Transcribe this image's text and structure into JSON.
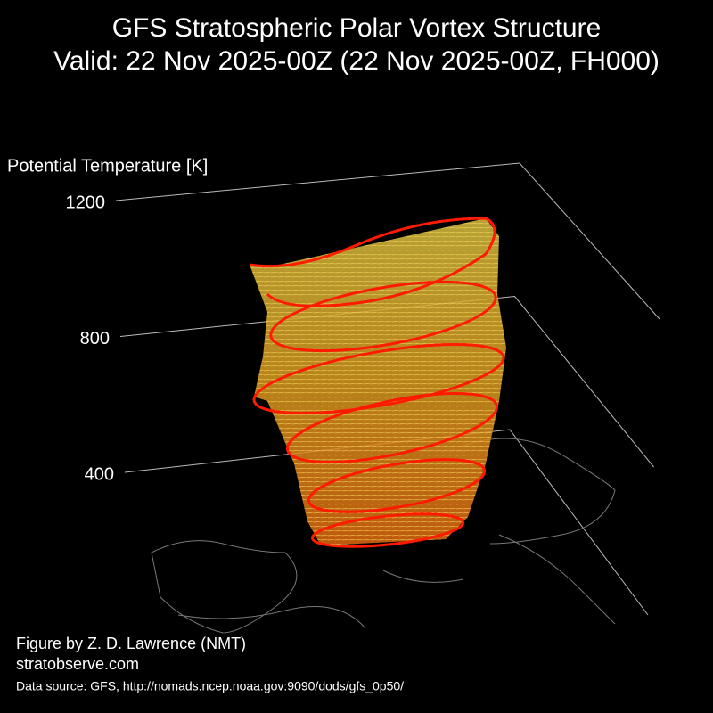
{
  "chart_data": {
    "type": "3d-vortex",
    "title": "GFS Stratospheric Polar Vortex Structure",
    "subtitle": "Valid: 22 Nov 2025-00Z  (22 Nov 2025-00Z, FH000)",
    "zlabel": "Potential Temperature [K]",
    "zlim": [
      400,
      1200
    ],
    "zticks": [
      400,
      800,
      1200
    ],
    "credit": "Figure by Z. D. Lawrence (NMT)",
    "website": "stratobserve.com",
    "source": "Data source: GFS, http://nomads.ncep.noaa.gov:9090/dods/gfs_0p50/"
  }
}
